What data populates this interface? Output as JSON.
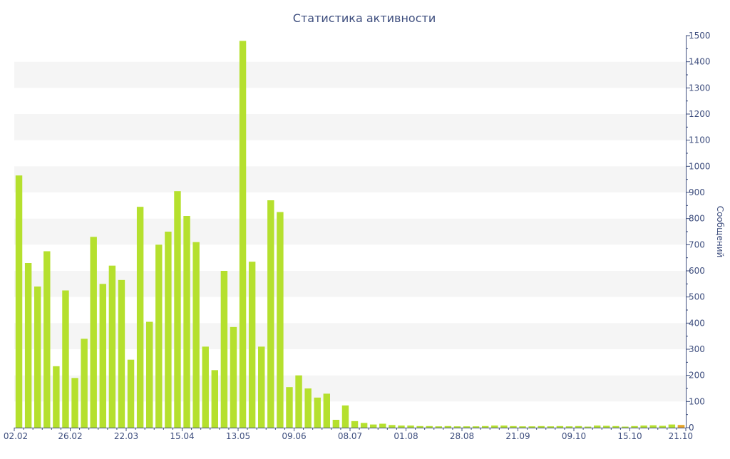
{
  "chart_data": {
    "type": "bar",
    "title": "Статистика активности",
    "ylabel": "Сообщений",
    "xlabel": "",
    "ylim": [
      0,
      1500
    ],
    "y_ticks": [
      0,
      100,
      200,
      300,
      400,
      500,
      600,
      700,
      800,
      900,
      1000,
      1100,
      1200,
      1300,
      1400,
      1500
    ],
    "x_tick_labels": [
      "02.02",
      "26.02",
      "22.03",
      "15.04",
      "13.05",
      "09.06",
      "08.07",
      "01.08",
      "28.08",
      "21.09",
      "09.10",
      "15.10",
      "21.10"
    ],
    "y_axis_side": "right",
    "grid": "alternating horizontal bands",
    "colors": {
      "bar": "#b5e02e",
      "axis": "#3e4e7e",
      "band": "#f5f5f5",
      "last_bar": "#e8a32a"
    },
    "values": [
      965,
      630,
      540,
      675,
      235,
      525,
      190,
      340,
      730,
      550,
      620,
      565,
      260,
      845,
      405,
      700,
      750,
      905,
      810,
      710,
      310,
      220,
      600,
      385,
      1480,
      635,
      310,
      870,
      825,
      155,
      200,
      150,
      115,
      130,
      30,
      85,
      25,
      18,
      12,
      15,
      10,
      8,
      8,
      6,
      6,
      5,
      6,
      5,
      5,
      5,
      6,
      8,
      8,
      6,
      5,
      5,
      6,
      5,
      6,
      5,
      6,
      4,
      8,
      7,
      6,
      4,
      6,
      8,
      9,
      7,
      12,
      10
    ]
  }
}
